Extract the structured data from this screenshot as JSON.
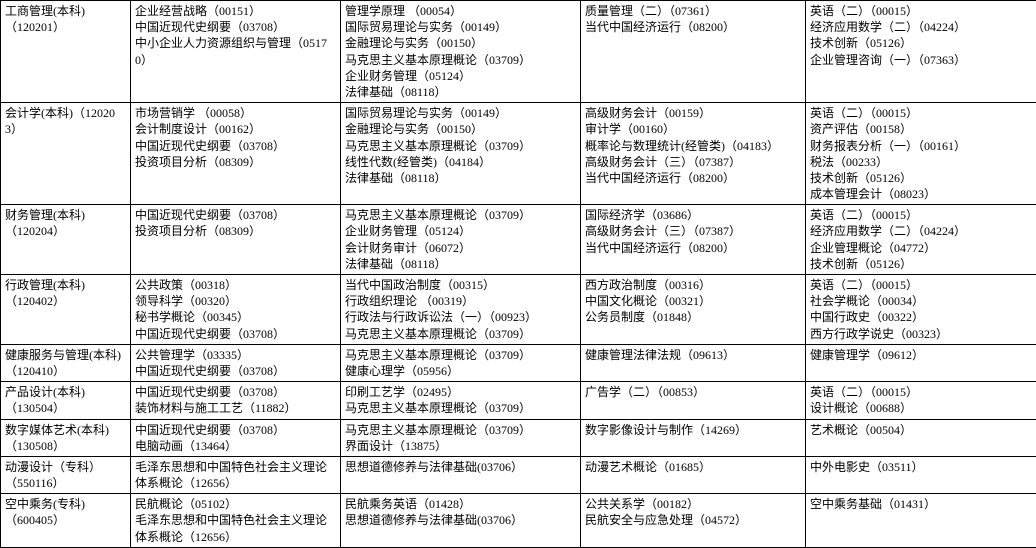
{
  "rows": [
    {
      "c0": [
        "工商管理(本科)",
        "（120201）"
      ],
      "c1": [
        "企业经营战略（00151）",
        "中国近现代史纲要（03708）",
        "中小企业人力资源组织与管理（05170）"
      ],
      "c2": [
        "管理学原理    （00054）",
        "国际贸易理论与实务（00149）",
        "金融理论与实务（00150）",
        "马克思主义基本原理概论（03709）",
        "企业财务管理（05124）",
        "法律基础（08118）"
      ],
      "c3": [
        "质量管理（二）（07361）",
        "当代中国经济运行（08200）"
      ],
      "c4": [
        "英语（二）（00015）",
        "经济应用数学（二）（04224）",
        "技术创新（05126）",
        "企业管理咨询（一）（07363）"
      ]
    },
    {
      "c0": [
        "会计学(本科)（120203）"
      ],
      "c1": [
        "市场营销学    （00058）",
        "会计制度设计（00162）",
        "中国近现代史纲要（03708）",
        "投资项目分析（08309）"
      ],
      "c2": [
        "国际贸易理论与实务（00149）",
        "金融理论与实务（00150）",
        "马克思主义基本原理概论（03709）",
        "线性代数(经管类)（04184）",
        "法律基础（08118）"
      ],
      "c3": [
        "高级财务会计（00159）",
        "审计学（00160）",
        "概率论与数理统计(经管类)（04183）",
        "高级财务会计（三）（07387）",
        "当代中国经济运行（08200）"
      ],
      "c4": [
        "英语（二）（00015）",
        "资产评估（00158）",
        "财务报表分析（一）（00161）",
        "税法（00233）",
        "技术创新（05126）",
        "成本管理会计（08023）"
      ]
    },
    {
      "c0": [
        "财务管理(本科)",
        "（120204）"
      ],
      "c1": [
        "中国近现代史纲要（03708）",
        "投资项目分析（08309）"
      ],
      "c2": [
        "马克思主义基本原理概论（03709）",
        "企业财务管理（05124）",
        "会计财务审计（06072）",
        "法律基础（08118）"
      ],
      "c3": [
        "国际经济学（03686）",
        "高级财务会计（三）（07387）",
        "当代中国经济运行（08200）"
      ],
      "c4": [
        "英语（二）（00015）",
        "经济应用数学（二）（04224）",
        "企业管理概论（04772）",
        "技术创新（05126）"
      ]
    },
    {
      "c0": [
        "行政管理(本科)",
        "（120402）"
      ],
      "c1": [
        "公共政策（00318）",
        "领导科学（00320）",
        "秘书学概论（00345）",
        "中国近现代史纲要（03708）"
      ],
      "c2": [
        "当代中国政治制度（00315）",
        "行政组织理论    （00319）",
        "行政法与行政诉讼法（一）（00923）",
        "马克思主义基本原理概论（03709）"
      ],
      "c3": [
        "西方政治制度（00316）",
        "中国文化概论（00321）",
        "公务员制度（01848）"
      ],
      "c4": [
        "英语（二）（00015）",
        "社会学概论（00034）",
        "中国行政史（00322）",
        "西方行政学说史（00323）"
      ]
    },
    {
      "c0": [
        "健康服务与管理(本科)（120410）"
      ],
      "c1": [
        "公共管理学（03335）",
        "中国近现代史纲要（03708）"
      ],
      "c2": [
        "马克思主义基本原理概论（03709）",
        "健康心理学（05956）"
      ],
      "c3": [
        "健康管理法律法规（09613）"
      ],
      "c4": [
        "健康管理学（09612）"
      ]
    },
    {
      "c0": [
        "产品设计(本科)",
        "（130504）"
      ],
      "c1": [
        "中国近现代史纲要（03708）",
        "装饰材料与施工工艺（11882）"
      ],
      "c2": [
        "印刷工艺学（02495）",
        "马克思主义基本原理概论（03709）"
      ],
      "c3": [
        "广告学（二）（00853）"
      ],
      "c4": [
        "英语（二）（00015）",
        "设计概论（00688）"
      ]
    },
    {
      "c0": [
        "数字媒体艺术(本科)",
        "（130508）"
      ],
      "c1": [
        "中国近现代史纲要（03708）",
        "电脑动画（13464）"
      ],
      "c2": [
        "马克思主义基本原理概论（03709）",
        "界面设计（13875）"
      ],
      "c3": [
        "数字影像设计与制作（14269）"
      ],
      "c4": [
        "艺术概论（00504）"
      ]
    },
    {
      "c0": [
        "动漫设计（专科）",
        "（550116）"
      ],
      "c1": [
        "毛泽东思想和中国特色社会主义理论体系概论（12656）"
      ],
      "c2": [
        "思想道德修养与法律基础(03706）"
      ],
      "c3": [
        "动漫艺术概论（01685）"
      ],
      "c4": [
        "中外电影史（03511）"
      ]
    },
    {
      "c0": [
        "空中乘务(专科)",
        "（600405）"
      ],
      "c1": [
        "民航概论（05102）",
        "毛泽东思想和中国特色社会主义理论体系概论（12656）"
      ],
      "c2": [
        "民航乘务英语（01428）",
        "思想道德修养与法律基础(03706）"
      ],
      "c3": [
        "公共关系学（00182）",
        "民航安全与应急处理（04572）"
      ],
      "c4": [
        "空中乘务基础（01431）"
      ]
    }
  ]
}
